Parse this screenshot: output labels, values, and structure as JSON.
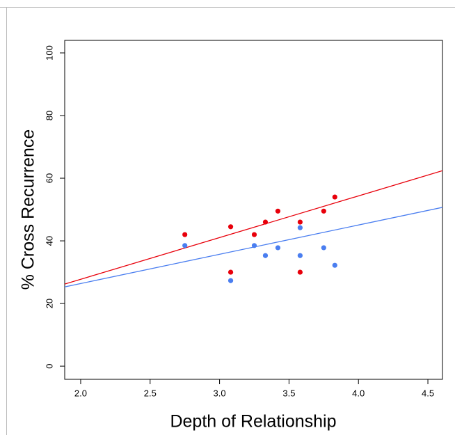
{
  "chart_data": {
    "type": "scatter",
    "xlabel": "Depth of Relationship",
    "ylabel": "% Cross Recurrence",
    "xlim": [
      1.885,
      4.605
    ],
    "ylim": [
      -4.2,
      104
    ],
    "xticks": [
      {
        "value": 2,
        "label": "2.0"
      },
      2.5,
      {
        "value": 3,
        "label": "3.0"
      },
      3.5,
      {
        "value": 4,
        "label": "4.0"
      },
      4.5
    ],
    "yticks": [
      0,
      20,
      40,
      60,
      80,
      100
    ],
    "grid": false,
    "series": [
      {
        "color": "#e8000b",
        "x": [
          2.75,
          3.08,
          3.08,
          3.25,
          3.33,
          3.42,
          3.58,
          3.58,
          3.75,
          3.83
        ],
        "values": [
          42,
          44.5,
          30,
          42,
          46,
          49.5,
          46,
          30,
          49.5,
          54
        ],
        "fit": {
          "x": [
            1.885,
            4.605
          ],
          "values": [
            26.2,
            62.4
          ]
        }
      },
      {
        "color": "#4a7ef0",
        "x": [
          2.75,
          3.08,
          3.25,
          3.33,
          3.42,
          3.58,
          3.58,
          3.75,
          3.83
        ],
        "values": [
          38.5,
          27.3,
          38.5,
          35.3,
          37.8,
          44.2,
          35.3,
          37.8,
          32.2
        ],
        "fit": {
          "x": [
            1.885,
            4.605
          ],
          "values": [
            25.3,
            50.7
          ]
        }
      }
    ]
  }
}
